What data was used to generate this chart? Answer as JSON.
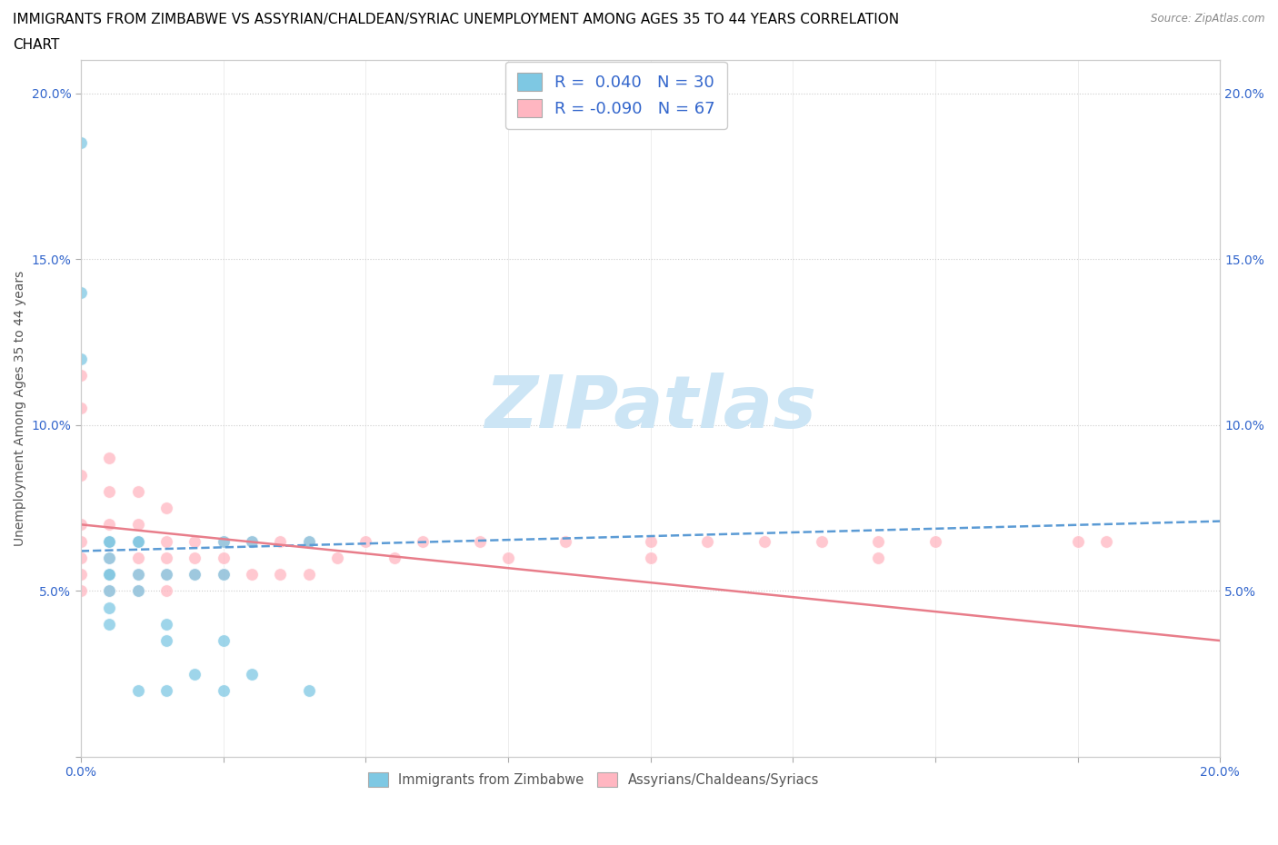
{
  "title_line1": "IMMIGRANTS FROM ZIMBABWE VS ASSYRIAN/CHALDEAN/SYRIAC UNEMPLOYMENT AMONG AGES 35 TO 44 YEARS CORRELATION",
  "title_line2": "CHART",
  "source": "Source: ZipAtlas.com",
  "ylabel": "Unemployment Among Ages 35 to 44 years",
  "xlim": [
    0.0,
    0.2
  ],
  "ylim": [
    0.0,
    0.21
  ],
  "x_ticks": [
    0.0,
    0.025,
    0.05,
    0.075,
    0.1,
    0.125,
    0.15,
    0.175,
    0.2
  ],
  "x_tick_labels": [
    "0.0%",
    "",
    "",
    "",
    "",
    "",
    "",
    "",
    "20.0%"
  ],
  "y_ticks": [
    0.0,
    0.05,
    0.1,
    0.15,
    0.2
  ],
  "y_tick_labels_left": [
    "",
    "5.0%",
    "10.0%",
    "15.0%",
    "20.0%"
  ],
  "y_tick_labels_right": [
    "",
    "5.0%",
    "10.0%",
    "15.0%",
    "20.0%"
  ],
  "color_blue": "#7ec8e3",
  "color_pink": "#ffb6c1",
  "color_blue_line": "#5b9bd5",
  "color_pink_line": "#e87d8a",
  "color_grid": "#cccccc",
  "color_watermark": "#cce5f5",
  "zimbabwe_x": [
    0.0,
    0.0,
    0.0,
    0.005,
    0.005,
    0.005,
    0.005,
    0.005,
    0.005,
    0.005,
    0.005,
    0.01,
    0.01,
    0.01,
    0.01,
    0.01,
    0.015,
    0.015,
    0.015,
    0.015,
    0.02,
    0.02,
    0.025,
    0.025,
    0.025,
    0.025,
    0.03,
    0.03,
    0.04,
    0.04
  ],
  "zimbabwe_y": [
    0.185,
    0.14,
    0.12,
    0.065,
    0.065,
    0.06,
    0.055,
    0.055,
    0.05,
    0.045,
    0.04,
    0.065,
    0.065,
    0.055,
    0.05,
    0.02,
    0.055,
    0.04,
    0.035,
    0.02,
    0.055,
    0.025,
    0.065,
    0.055,
    0.035,
    0.02,
    0.065,
    0.025,
    0.065,
    0.02
  ],
  "assyrian_x": [
    0.0,
    0.0,
    0.0,
    0.0,
    0.0,
    0.0,
    0.0,
    0.0,
    0.005,
    0.005,
    0.005,
    0.005,
    0.005,
    0.005,
    0.005,
    0.01,
    0.01,
    0.01,
    0.01,
    0.01,
    0.01,
    0.015,
    0.015,
    0.015,
    0.015,
    0.015,
    0.02,
    0.02,
    0.02,
    0.025,
    0.025,
    0.025,
    0.03,
    0.03,
    0.035,
    0.035,
    0.04,
    0.04,
    0.045,
    0.05,
    0.055,
    0.06,
    0.07,
    0.075,
    0.085,
    0.1,
    0.1,
    0.11,
    0.12,
    0.13,
    0.14,
    0.14,
    0.15,
    0.175,
    0.18
  ],
  "assyrian_y": [
    0.115,
    0.105,
    0.085,
    0.07,
    0.065,
    0.06,
    0.055,
    0.05,
    0.09,
    0.08,
    0.07,
    0.065,
    0.06,
    0.055,
    0.05,
    0.08,
    0.07,
    0.065,
    0.06,
    0.055,
    0.05,
    0.075,
    0.065,
    0.06,
    0.055,
    0.05,
    0.065,
    0.06,
    0.055,
    0.065,
    0.06,
    0.055,
    0.065,
    0.055,
    0.065,
    0.055,
    0.065,
    0.055,
    0.06,
    0.065,
    0.06,
    0.065,
    0.065,
    0.06,
    0.065,
    0.065,
    0.06,
    0.065,
    0.065,
    0.065,
    0.065,
    0.06,
    0.065,
    0.065,
    0.065
  ],
  "zim_trend_x": [
    0.0,
    0.2
  ],
  "zim_trend_y": [
    0.062,
    0.071
  ],
  "ass_trend_x": [
    0.0,
    0.2
  ],
  "ass_trend_y": [
    0.07,
    0.035
  ],
  "title_fontsize": 11,
  "axis_label_fontsize": 10,
  "tick_fontsize": 10,
  "legend_fontsize": 12
}
